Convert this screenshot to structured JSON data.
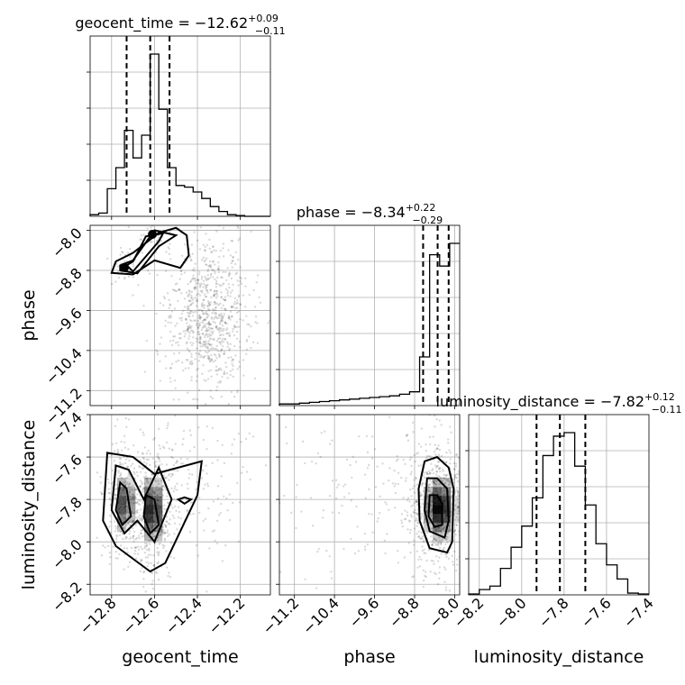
{
  "chart_data": {
    "type": "corner",
    "parameters": [
      "geocent_time",
      "phase",
      "luminosity_distance"
    ],
    "axis_labels": {
      "geocent_time": "geocent_time",
      "phase": "phase",
      "luminosity_distance": "luminosity_distance"
    },
    "ranges": {
      "geocent_time": [
        -12.9,
        -12.06
      ],
      "phase": [
        -11.5,
        -7.9
      ],
      "luminosity_distance": [
        -8.25,
        -7.4
      ]
    },
    "ticks": {
      "geocent_time": [
        -12.8,
        -12.6,
        -12.4,
        -12.2
      ],
      "phase": [
        -11.2,
        -10.4,
        -9.6,
        -8.8,
        -8.0
      ],
      "luminosity_distance": [
        -8.2,
        -8.0,
        -7.8,
        -7.6,
        -7.4
      ]
    },
    "tick_labels": {
      "geocent_time": [
        "−12.8",
        "−12.6",
        "−12.4",
        "−12.2"
      ],
      "phase": [
        "−11.2",
        "−10.4",
        "−9.6",
        "−8.8",
        "−8.0"
      ],
      "luminosity_distance": [
        "−8.2",
        "−8.0",
        "−7.8",
        "−7.6",
        "−7.4"
      ]
    },
    "titles": {
      "geocent_time": {
        "prefix": "geocent_time = ",
        "median": "−12.62",
        "upper": "+0.09",
        "lower": "−0.11"
      },
      "phase": {
        "prefix": "phase = ",
        "median": "−8.34",
        "upper": "+0.22",
        "lower": "−0.29"
      },
      "luminosity_distance": {
        "prefix": "luminosity_distance = ",
        "median": "−7.82",
        "upper": "+0.12",
        "lower": "−0.11"
      }
    },
    "quantiles": {
      "geocent_time": [
        -12.73,
        -12.62,
        -12.53
      ],
      "phase": [
        -8.63,
        -8.34,
        -8.12
      ],
      "luminosity_distance": [
        -7.93,
        -7.82,
        -7.7
      ]
    },
    "histograms": {
      "geocent_time": {
        "edges": [
          -12.9,
          -12.86,
          -12.82,
          -12.78,
          -12.74,
          -12.7,
          -12.66,
          -12.62,
          -12.58,
          -12.54,
          -12.5,
          -12.46,
          -12.42,
          -12.38,
          -12.34,
          -12.3,
          -12.26,
          -12.22,
          -12.18,
          -12.14,
          -12.1,
          -12.06
        ],
        "counts": [
          0.01,
          0.02,
          0.17,
          0.3,
          0.53,
          0.36,
          0.5,
          1.0,
          0.66,
          0.3,
          0.19,
          0.18,
          0.15,
          0.11,
          0.06,
          0.03,
          0.01,
          0.005,
          0,
          0,
          0
        ]
      },
      "phase": {
        "edges": [
          -11.5,
          -11.3,
          -11.1,
          -10.9,
          -10.7,
          -10.5,
          -10.3,
          -10.1,
          -9.9,
          -9.7,
          -9.5,
          -9.3,
          -9.1,
          -8.9,
          -8.7,
          -8.5,
          -8.3,
          -8.1,
          -7.9
        ],
        "counts": [
          0.01,
          0.01,
          0.015,
          0.02,
          0.025,
          0.03,
          0.035,
          0.04,
          0.045,
          0.05,
          0.055,
          0.06,
          0.07,
          0.085,
          0.3,
          0.93,
          0.86,
          1.0
        ]
      },
      "luminosity_distance": {
        "edges": [
          -8.25,
          -8.2,
          -8.15,
          -8.1,
          -8.05,
          -8.0,
          -7.95,
          -7.9,
          -7.85,
          -7.8,
          -7.75,
          -7.7,
          -7.65,
          -7.6,
          -7.55,
          -7.5,
          -7.45,
          -7.4
        ],
        "counts": [
          0.005,
          0.03,
          0.05,
          0.15,
          0.27,
          0.39,
          0.55,
          0.79,
          0.9,
          0.92,
          0.73,
          0.51,
          0.29,
          0.17,
          0.09,
          0.01,
          0.005
        ]
      }
    },
    "pairs": [
      {
        "x": "geocent_time",
        "y": "phase",
        "modes": [
          [
            -12.74,
            -8.72,
            0.018,
            0.12,
            0.05
          ],
          [
            -12.6,
            -8.1,
            0.025,
            0.12,
            0.07
          ]
        ],
        "tail": [
          -12.35,
          -9.7,
          0.06,
          0.5,
          1.0
        ],
        "contours": [
          [
            [
              -12.78,
              -8.62
            ],
            [
              -12.7,
              -8.45
            ],
            [
              -12.58,
              -8.05
            ],
            [
              -12.5,
              -7.95
            ],
            [
              -12.45,
              -8.1
            ],
            [
              -12.44,
              -8.5
            ],
            [
              -12.48,
              -8.75
            ],
            [
              -12.6,
              -8.6
            ],
            [
              -12.7,
              -8.88
            ],
            [
              -12.8,
              -8.85
            ]
          ],
          [
            [
              -12.76,
              -8.7
            ],
            [
              -12.7,
              -8.6
            ],
            [
              -12.6,
              -8.0
            ],
            [
              -12.5,
              -8.1
            ],
            [
              -12.58,
              -8.32
            ],
            [
              -12.68,
              -8.86
            ],
            [
              -12.76,
              -8.8
            ]
          ],
          [
            [
              -12.73,
              -8.7
            ],
            [
              -12.7,
              -8.62
            ],
            [
              -12.64,
              -8.12
            ],
            [
              -12.56,
              -8.06
            ],
            [
              -12.58,
              -8.22
            ],
            [
              -12.7,
              -8.82
            ]
          ]
        ],
        "dots": [
          [
            -12.74,
            -8.74
          ],
          [
            -12.61,
            -8.08
          ]
        ]
      },
      {
        "x": "geocent_time",
        "y": "luminosity_distance",
        "modes": [
          [
            -12.74,
            -7.82,
            0.03,
            0.09,
            0.8
          ],
          [
            -12.61,
            -7.85,
            0.03,
            0.1,
            1.0
          ]
        ],
        "tail": [
          -12.45,
          -7.72,
          0.1,
          0.1,
          0.5
        ],
        "contours": [
          [
            [
              -12.82,
              -7.58
            ],
            [
              -12.7,
              -7.6
            ],
            [
              -12.6,
              -7.68
            ],
            [
              -12.38,
              -7.62
            ],
            [
              -12.4,
              -7.78
            ],
            [
              -12.55,
              -8.1
            ],
            [
              -12.62,
              -8.14
            ],
            [
              -12.78,
              -8.02
            ],
            [
              -12.84,
              -7.9
            ]
          ],
          [
            [
              -12.78,
              -7.64
            ],
            [
              -12.72,
              -7.66
            ],
            [
              -12.65,
              -7.8
            ],
            [
              -12.58,
              -7.65
            ],
            [
              -12.52,
              -7.8
            ],
            [
              -12.6,
              -8.0
            ],
            [
              -12.68,
              -7.9
            ],
            [
              -12.74,
              -7.96
            ],
            [
              -12.8,
              -7.85
            ]
          ],
          [
            [
              -12.76,
              -7.72
            ],
            [
              -12.73,
              -7.75
            ],
            [
              -12.71,
              -7.88
            ],
            [
              -12.75,
              -7.92
            ],
            [
              -12.78,
              -7.85
            ]
          ],
          [
            [
              -12.64,
              -7.78
            ],
            [
              -12.6,
              -7.8
            ],
            [
              -12.58,
              -7.92
            ],
            [
              -12.62,
              -7.96
            ],
            [
              -12.65,
              -7.88
            ]
          ],
          [
            [
              -12.46,
              -7.79
            ],
            [
              -12.43,
              -7.8
            ],
            [
              -12.46,
              -7.82
            ],
            [
              -12.49,
              -7.8
            ]
          ]
        ],
        "dots": []
      },
      {
        "x": "phase",
        "y": "luminosity_distance",
        "modes": [
          [
            -8.3,
            -7.84,
            0.2,
            0.09,
            1.0
          ]
        ],
        "tail": [
          -9.4,
          -7.8,
          0.8,
          0.15,
          0.35
        ],
        "contours": [
          [
            [
              -8.6,
              -7.62
            ],
            [
              -8.35,
              -7.6
            ],
            [
              -8.12,
              -7.65
            ],
            [
              -8.02,
              -7.75
            ],
            [
              -8.05,
              -8.0
            ],
            [
              -8.15,
              -8.05
            ],
            [
              -8.5,
              -8.03
            ],
            [
              -8.7,
              -7.9
            ],
            [
              -8.72,
              -7.75
            ]
          ],
          [
            [
              -8.55,
              -7.7
            ],
            [
              -8.35,
              -7.7
            ],
            [
              -8.15,
              -7.75
            ],
            [
              -8.12,
              -7.9
            ],
            [
              -8.2,
              -7.98
            ],
            [
              -8.5,
              -7.95
            ],
            [
              -8.6,
              -7.85
            ]
          ],
          [
            [
              -8.5,
              -7.78
            ],
            [
              -8.35,
              -7.78
            ],
            [
              -8.25,
              -7.82
            ],
            [
              -8.25,
              -7.92
            ],
            [
              -8.4,
              -7.93
            ],
            [
              -8.52,
              -7.88
            ]
          ]
        ],
        "dots": []
      }
    ]
  }
}
